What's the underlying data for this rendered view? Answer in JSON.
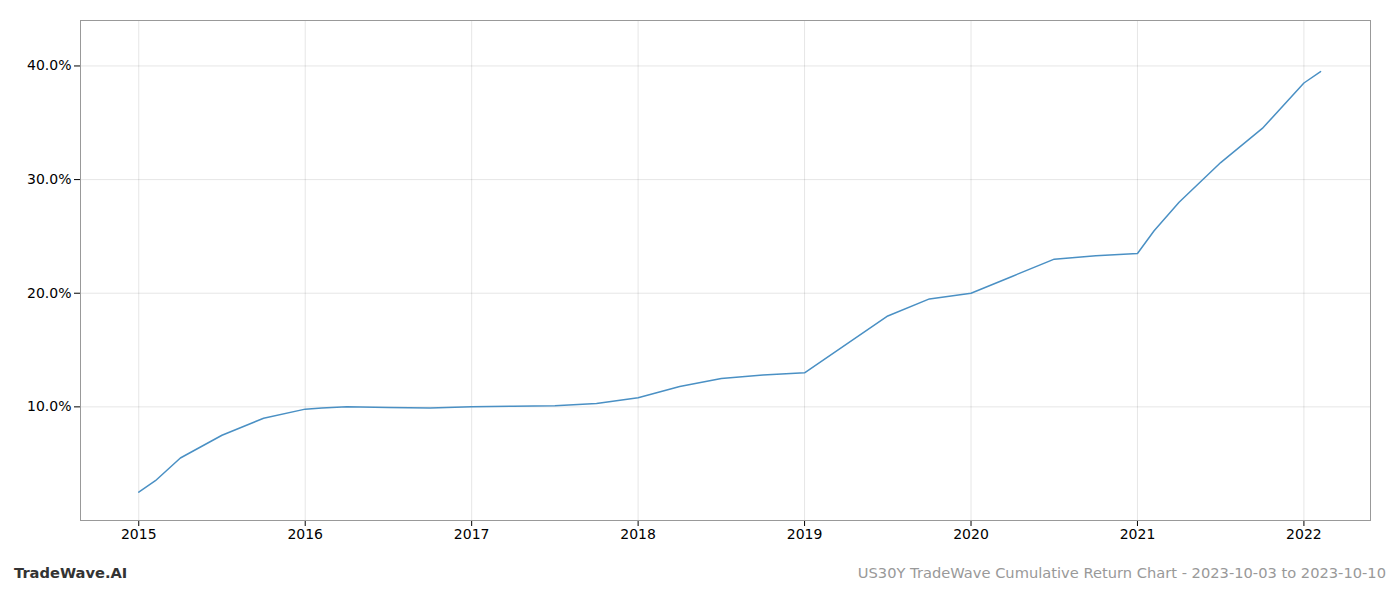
{
  "chart_data": {
    "type": "line",
    "annotations": [
      "TradeWave.AI",
      "US30Y TradeWave Cumulative Return Chart - 2023-10-03 to 2023-10-10"
    ],
    "x": [
      2015.0,
      2015.1,
      2015.25,
      2015.5,
      2015.75,
      2016.0,
      2016.1,
      2016.25,
      2016.5,
      2016.75,
      2017.0,
      2017.25,
      2017.5,
      2017.75,
      2018.0,
      2018.1,
      2018.25,
      2018.5,
      2018.75,
      2019.0,
      2019.25,
      2019.5,
      2019.75,
      2020.0,
      2020.25,
      2020.5,
      2020.75,
      2021.0,
      2021.1,
      2021.25,
      2021.5,
      2021.75,
      2022.0,
      2022.1
    ],
    "values": [
      2.5,
      3.5,
      5.5,
      7.5,
      9.0,
      9.8,
      9.9,
      10.0,
      9.95,
      9.9,
      10.0,
      10.05,
      10.1,
      10.3,
      10.8,
      11.2,
      11.8,
      12.5,
      12.8,
      13.0,
      15.5,
      18.0,
      19.5,
      20.0,
      21.5,
      23.0,
      23.3,
      23.5,
      25.5,
      28.0,
      31.5,
      34.5,
      38.5,
      39.5
    ],
    "color": "#4a90c4",
    "xlim": [
      2014.65,
      2022.4
    ],
    "xticks": [
      2015,
      2016,
      2017,
      2018,
      2019,
      2020,
      2021,
      2022
    ],
    "ylim": [
      0,
      44
    ],
    "yticks": [
      {
        "value": 10.0,
        "label": "10.0%"
      },
      {
        "value": 20.0,
        "label": "20.0%"
      },
      {
        "value": 30.0,
        "label": "30.0%"
      },
      {
        "value": 40.0,
        "label": "40.0%"
      }
    ],
    "grid": true
  }
}
